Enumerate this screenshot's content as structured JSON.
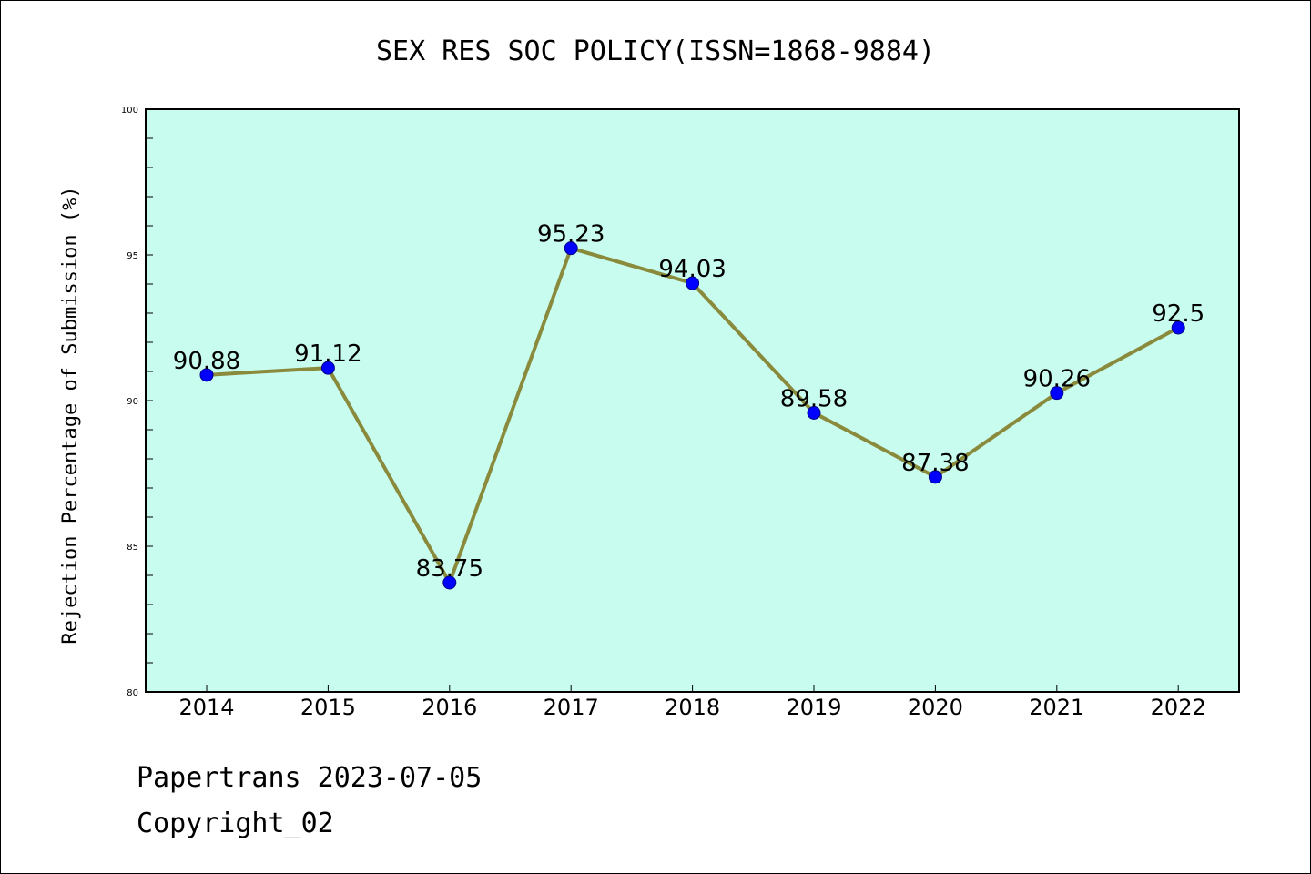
{
  "chart_data": {
    "type": "line",
    "title": "SEX RES SOC POLICY(ISSN=1868-9884)",
    "xlabel": "",
    "ylabel": "Rejection Percentage of Submission (%)",
    "ylim": [
      80,
      100
    ],
    "yticks": [
      80,
      85,
      90,
      95,
      100
    ],
    "grid": false,
    "categories": [
      "2014",
      "2015",
      "2016",
      "2017",
      "2018",
      "2019",
      "2020",
      "2021",
      "2022"
    ],
    "series": [
      {
        "values": [
          90.88,
          91.12,
          83.75,
          95.23,
          94.03,
          89.58,
          87.38,
          90.26,
          92.5
        ],
        "labels": [
          "90.88",
          "91.12",
          "83.75",
          "95.23",
          "94.03",
          "89.58",
          "87.38",
          "90.26",
          "92.5"
        ]
      }
    ],
    "colors": {
      "plot_background": "#c8fcee",
      "line": "#8a8a3c",
      "marker": "#0000ff"
    }
  },
  "footer": {
    "line1": "Papertrans 2023-07-05",
    "line2": "Copyright_02"
  }
}
